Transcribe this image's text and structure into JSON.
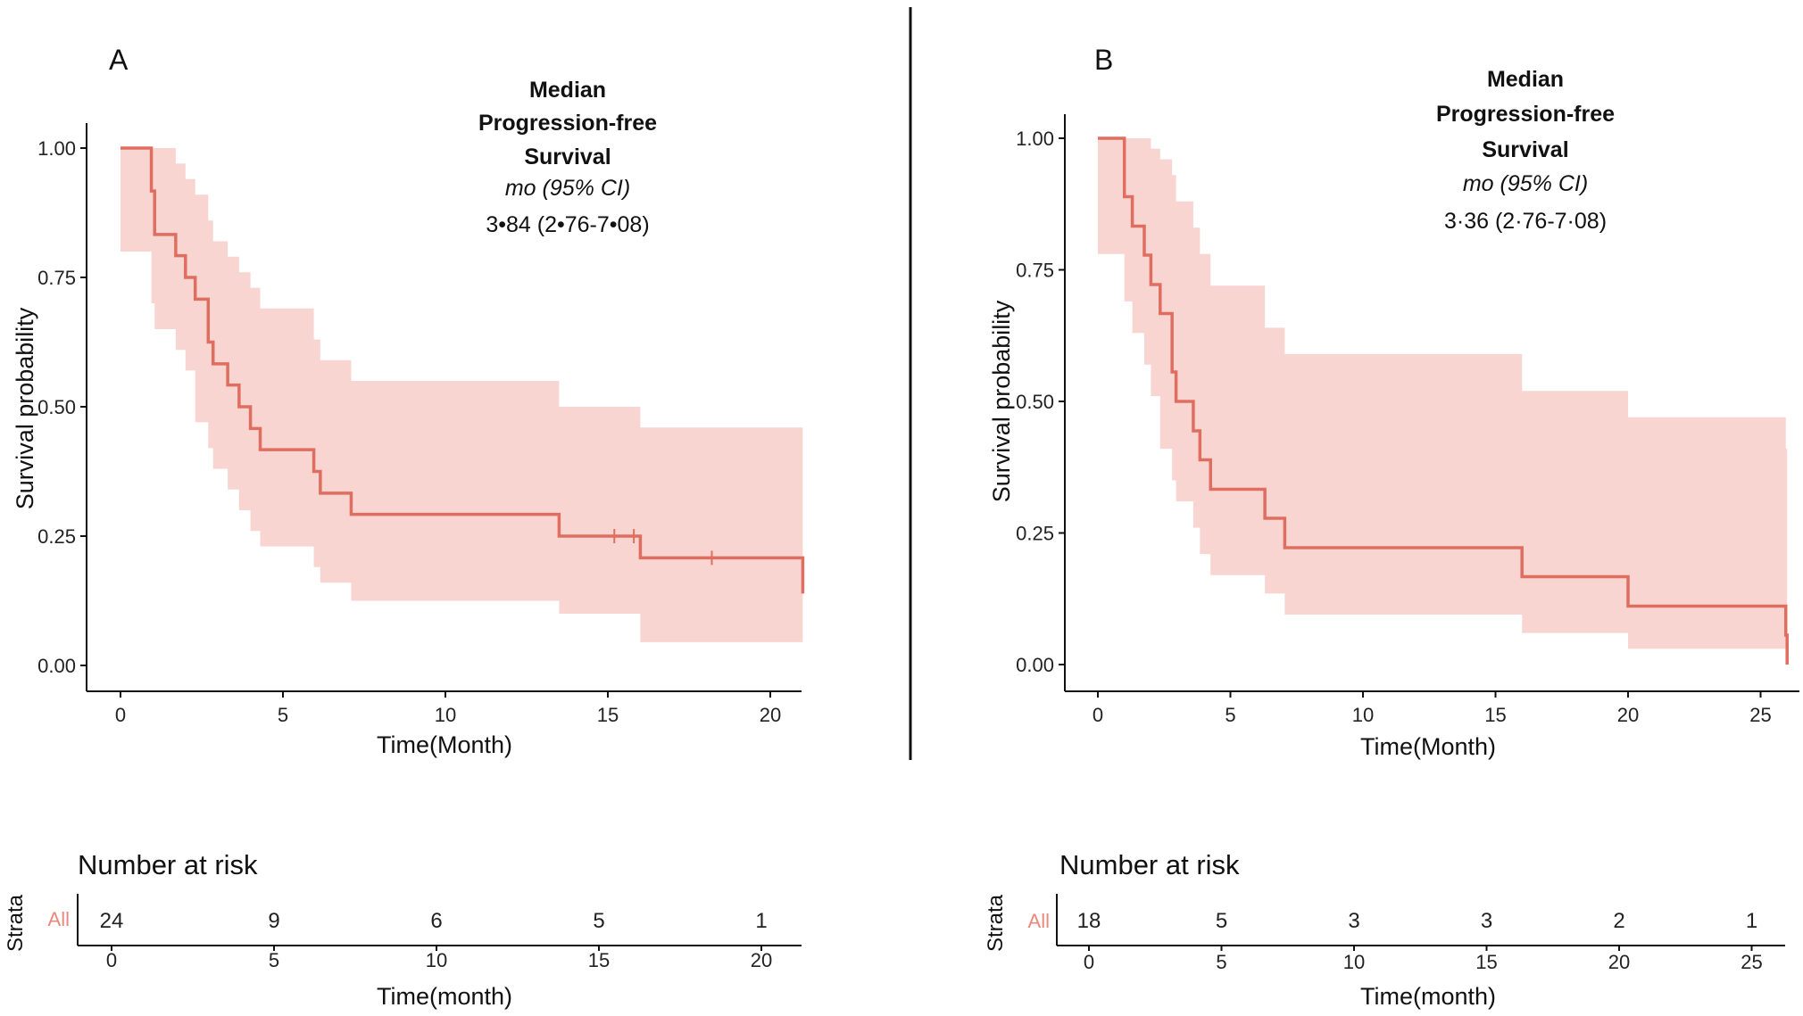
{
  "colors": {
    "curve": "#e06e60",
    "band": "#f6cbc6",
    "axis": "#111111",
    "divider": "#111111"
  },
  "chart_data": [
    {
      "panel": "A",
      "type": "line",
      "ylabel": "Survival probability",
      "xlabel": "Time(Month)",
      "ylim": [
        0,
        1
      ],
      "xlim": [
        0,
        21
      ],
      "xticks": [
        "0",
        "5",
        "10",
        "15",
        "20"
      ],
      "yticks": [
        "0.00",
        "0.25",
        "0.50",
        "0.75",
        "1.00"
      ],
      "annotation": {
        "line1": "Median",
        "line2": "Progression-free",
        "line3": "Survival",
        "line4": "mo (95% CI)",
        "value": "3•84 (2•76-7•08)"
      },
      "series": [
        {
          "name": "All",
          "x": [
            0,
            0.95,
            1.05,
            1.7,
            2.0,
            2.3,
            2.7,
            2.85,
            3.3,
            3.65,
            4.0,
            4.3,
            5.95,
            6.15,
            7.1,
            13.5,
            16.0,
            21.0
          ],
          "y": [
            1.0,
            0.917,
            0.833,
            0.792,
            0.75,
            0.708,
            0.625,
            0.583,
            0.542,
            0.5,
            0.458,
            0.417,
            0.375,
            0.333,
            0.292,
            0.25,
            0.208,
            0.139
          ]
        }
      ],
      "band_upper": [
        1.0,
        1.0,
        1.0,
        0.97,
        0.94,
        0.91,
        0.86,
        0.82,
        0.79,
        0.76,
        0.73,
        0.69,
        0.63,
        0.59,
        0.55,
        0.5,
        0.46,
        0.42
      ],
      "band_lower": [
        1.0,
        0.8,
        0.7,
        0.65,
        0.61,
        0.57,
        0.47,
        0.42,
        0.38,
        0.34,
        0.3,
        0.26,
        0.23,
        0.19,
        0.16,
        0.125,
        0.1,
        0.045
      ],
      "censor_x": [
        15.2,
        15.8,
        18.2
      ],
      "risk_table": {
        "title": "Number at risk",
        "strata_label": "Strata",
        "strata": "All",
        "times": [
          "0",
          "5",
          "10",
          "15",
          "20"
        ],
        "counts": [
          "24",
          "9",
          "6",
          "5",
          "1"
        ],
        "xlabel": "Time(month)"
      }
    },
    {
      "panel": "B",
      "type": "line",
      "ylabel": "Survival probability",
      "xlabel": "Time(Month)",
      "ylim": [
        0,
        1
      ],
      "xlim": [
        0,
        26
      ],
      "xticks": [
        "0",
        "5",
        "10",
        "15",
        "20",
        "25"
      ],
      "yticks": [
        "0.00",
        "0.25",
        "0.50",
        "0.75",
        "1.00"
      ],
      "annotation": {
        "line1": "Median",
        "line2": "Progression-free",
        "line3": "Survival",
        "line4": "mo (95% CI)",
        "value": "3·36 (2·76-7·08)"
      },
      "series": [
        {
          "name": "All",
          "x": [
            0,
            1.0,
            1.3,
            1.75,
            2.0,
            2.35,
            2.8,
            2.95,
            3.6,
            3.85,
            4.25,
            6.3,
            7.05,
            16.0,
            20.0,
            25.95,
            26.0
          ],
          "y": [
            1.0,
            0.889,
            0.833,
            0.778,
            0.722,
            0.667,
            0.556,
            0.5,
            0.444,
            0.389,
            0.333,
            0.278,
            0.222,
            0.167,
            0.111,
            0.056,
            0.0
          ]
        }
      ],
      "band_upper": [
        1.0,
        1.0,
        1.0,
        1.0,
        0.98,
        0.96,
        0.93,
        0.88,
        0.83,
        0.78,
        0.72,
        0.64,
        0.59,
        0.52,
        0.47,
        0.41,
        0.375
      ],
      "band_lower": [
        1.0,
        0.78,
        0.69,
        0.63,
        0.57,
        0.51,
        0.41,
        0.35,
        0.31,
        0.26,
        0.21,
        0.17,
        0.135,
        0.095,
        0.06,
        0.03,
        0.005
      ],
      "censor_x": [],
      "risk_table": {
        "title": "Number at risk",
        "strata_label": "Strata",
        "strata": "All",
        "times": [
          "0",
          "5",
          "10",
          "15",
          "20",
          "25"
        ],
        "counts": [
          "18",
          "5",
          "3",
          "3",
          "2",
          "1"
        ],
        "xlabel": "Time(month)"
      }
    }
  ]
}
